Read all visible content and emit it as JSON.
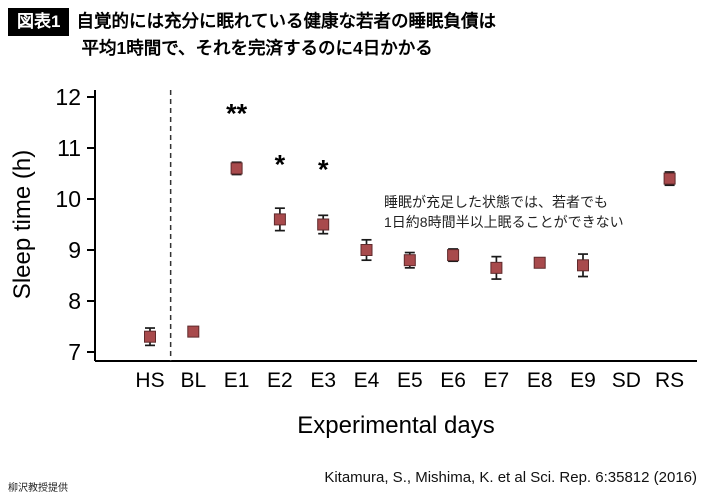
{
  "header": {
    "badge": "図表1",
    "title_line1": "自覚的には充分に眠れている健康な若者の睡眠負債は",
    "title_line2": "平均1時間で、それを完済するのに4日かかる"
  },
  "chart_data": {
    "type": "scatter",
    "title": "",
    "xlabel": "Experimental days",
    "ylabel": "Sleep time (h)",
    "ylim": [
      7,
      12
    ],
    "yticks": [
      7,
      8,
      9,
      10,
      11,
      12
    ],
    "categories": [
      "HS",
      "BL",
      "E1",
      "E2",
      "E3",
      "E4",
      "E5",
      "E6",
      "E7",
      "E8",
      "E9",
      "SD",
      "RS"
    ],
    "values": [
      7.3,
      7.4,
      10.6,
      9.6,
      9.5,
      9.0,
      8.8,
      8.9,
      8.65,
      8.75,
      8.7,
      null,
      10.4
    ],
    "errors": [
      0.17,
      0.05,
      0.12,
      0.22,
      0.18,
      0.2,
      0.15,
      0.12,
      0.22,
      0.07,
      0.22,
      null,
      0.13
    ],
    "significance": [
      {
        "category": "E1",
        "label": "**"
      },
      {
        "category": "E2",
        "label": "*"
      },
      {
        "category": "E3",
        "label": "*"
      }
    ],
    "note_lines": [
      "睡眠が充足した状態では、若者でも",
      "1日約8時間半以上眠ることができない"
    ],
    "separator_after": "HS",
    "marker_color": "#a84a4c",
    "marker_edge_color": "#5f2a2c",
    "error_bar_color": "#1a1a1a",
    "axis_color": "#000000",
    "grid": false,
    "legend": false
  },
  "footer": {
    "credit": "柳沢教授提供",
    "citation": "Kitamura, S., Mishima, K. et al Sci. Rep. 6:35812 (2016)"
  }
}
